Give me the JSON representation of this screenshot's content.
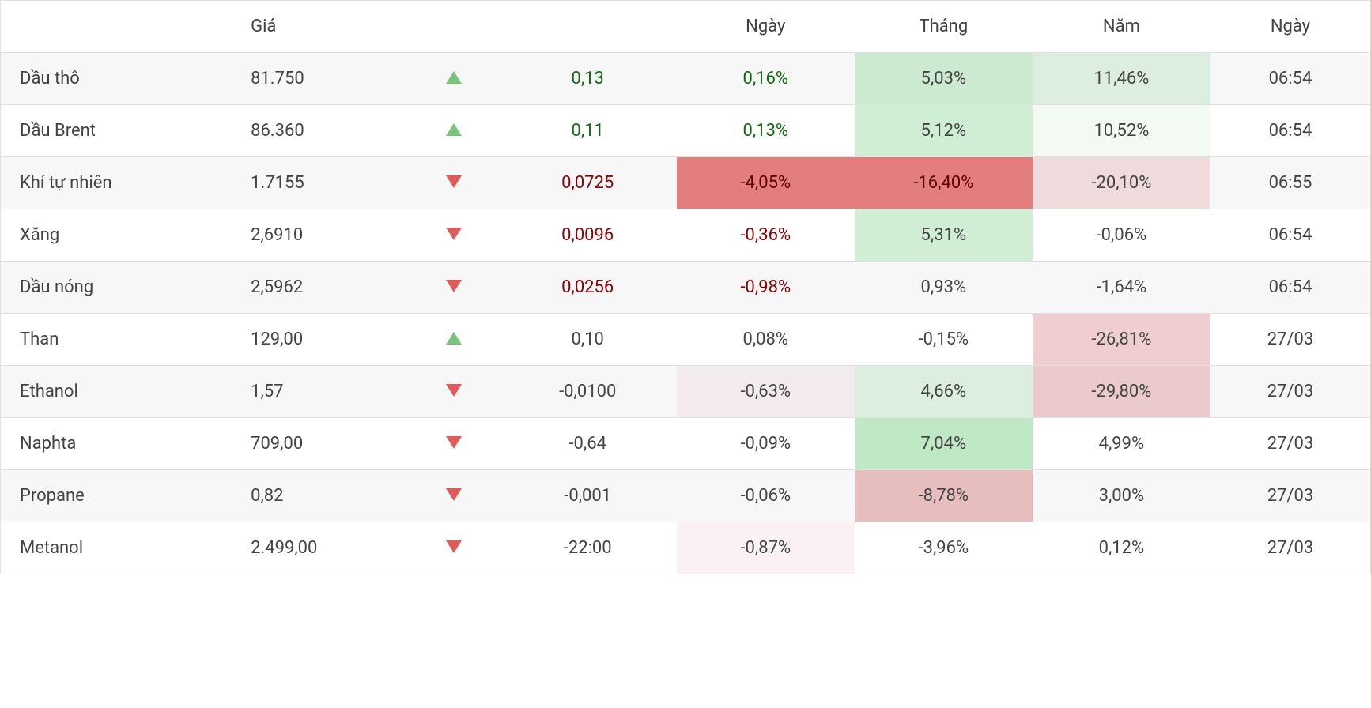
{
  "colors": {
    "text": "#444444",
    "border": "#e0e0e0",
    "row_alt": "#f7f7f7",
    "pos_text": "#0f6b0f",
    "neg_text": "#8b0000",
    "arrow_up": "#7ac47a",
    "arrow_down": "#e05a5a",
    "bg_pos_light": "rgba(169,224,176,0.35)",
    "bg_pos_mid": "rgba(169,224,176,0.55)",
    "bg_pos_strong": "rgba(169,224,176,0.75)",
    "bg_neg_light": "rgba(224,165,165,0.35)",
    "bg_neg_mid": "rgba(224,165,165,0.55)",
    "bg_neg_strong": "rgba(224,105,105,0.85)"
  },
  "headers": {
    "blank1": "",
    "price": "Giá",
    "blank2": "",
    "blank3": "",
    "day": "Ngày",
    "month": "Tháng",
    "year": "Năm",
    "time": "Ngày"
  },
  "rows": [
    {
      "name": "Dầu thô",
      "price": "81.750",
      "dir": "up",
      "change": "0,13",
      "change_color": "pos",
      "day": "0,16%",
      "day_color": "pos",
      "day_bg": "",
      "month": "5,03%",
      "month_bg": "cell-bg-pos-2",
      "year": "11,46%",
      "year_bg": "cell-bg-pos-1",
      "time": "06:54",
      "alt": true
    },
    {
      "name": "Dầu Brent",
      "price": "86.360",
      "dir": "up",
      "change": "0,11",
      "change_color": "pos",
      "day": "0,13%",
      "day_color": "pos",
      "day_bg": "",
      "month": "5,12%",
      "month_bg": "cell-bg-pos-2",
      "year": "10,52%",
      "year_bg": "cell-bg-pos-4",
      "time": "06:54",
      "alt": false
    },
    {
      "name": "Khí tự nhiên",
      "price": "1.7155",
      "dir": "down",
      "change": "0,0725",
      "change_color": "neg",
      "day": "-4,05%",
      "day_color": "neg-pct",
      "day_bg": "cell-bg-neg-3",
      "month": "-16,40%",
      "month_bg": "cell-bg-neg-3",
      "year": "-20,10%",
      "year_bg": "cell-bg-neg-1",
      "time": "06:55",
      "alt": true
    },
    {
      "name": "Xăng",
      "price": "2,6910",
      "dir": "down",
      "change": "0,0096",
      "change_color": "neg",
      "day": "-0,36%",
      "day_color": "neg-pct",
      "day_bg": "",
      "month": "5,31%",
      "month_bg": "cell-bg-pos-2",
      "year": "-0,06%",
      "year_bg": "",
      "time": "06:54",
      "alt": false
    },
    {
      "name": "Dầu nóng",
      "price": "2,5962",
      "dir": "down",
      "change": "0,0256",
      "change_color": "neg",
      "day": "-0,98%",
      "day_color": "neg-pct",
      "day_bg": "",
      "month": "0,93%",
      "month_bg": "",
      "year": "-1,64%",
      "year_bg": "",
      "time": "06:54",
      "alt": true
    },
    {
      "name": "Than",
      "price": "129,00",
      "dir": "up",
      "change": "0,10",
      "change_color": "",
      "day": "0,08%",
      "day_color": "",
      "day_bg": "",
      "month": "-0,15%",
      "month_bg": "",
      "year": "-26,81%",
      "year_bg": "cell-bg-neg-2",
      "time": "27/03",
      "alt": false
    },
    {
      "name": "Ethanol",
      "price": "1,57",
      "dir": "down",
      "change": "-0,0100",
      "change_color": "",
      "day": "-0,63%",
      "day_color": "",
      "day_bg": "cell-bg-neg-4",
      "month": "4,66%",
      "month_bg": "cell-bg-pos-1",
      "year": "-29,80%",
      "year_bg": "cell-bg-neg-2",
      "time": "27/03",
      "alt": true
    },
    {
      "name": "Naphta",
      "price": "709,00",
      "dir": "down",
      "change": "-0,64",
      "change_color": "",
      "day": "-0,09%",
      "day_color": "",
      "day_bg": "",
      "month": "7,04%",
      "month_bg": "cell-bg-pos-3",
      "year": "4,99%",
      "year_bg": "",
      "time": "27/03",
      "alt": false
    },
    {
      "name": "Propane",
      "price": "0,82",
      "dir": "down",
      "change": "-0,001",
      "change_color": "",
      "day": "-0,06%",
      "day_color": "",
      "day_bg": "",
      "month": "-8,78%",
      "month_bg": "cell-bg-neg-5",
      "year": "3,00%",
      "year_bg": "",
      "time": "27/03",
      "alt": true
    },
    {
      "name": "Metanol",
      "price": "2.499,00",
      "dir": "down",
      "change": "-22:00",
      "change_color": "",
      "day": "-0,87%",
      "day_color": "",
      "day_bg": "cell-bg-neg-4",
      "month": "-3,96%",
      "month_bg": "",
      "year": "0,12%",
      "year_bg": "",
      "time": "27/03",
      "alt": false
    }
  ]
}
